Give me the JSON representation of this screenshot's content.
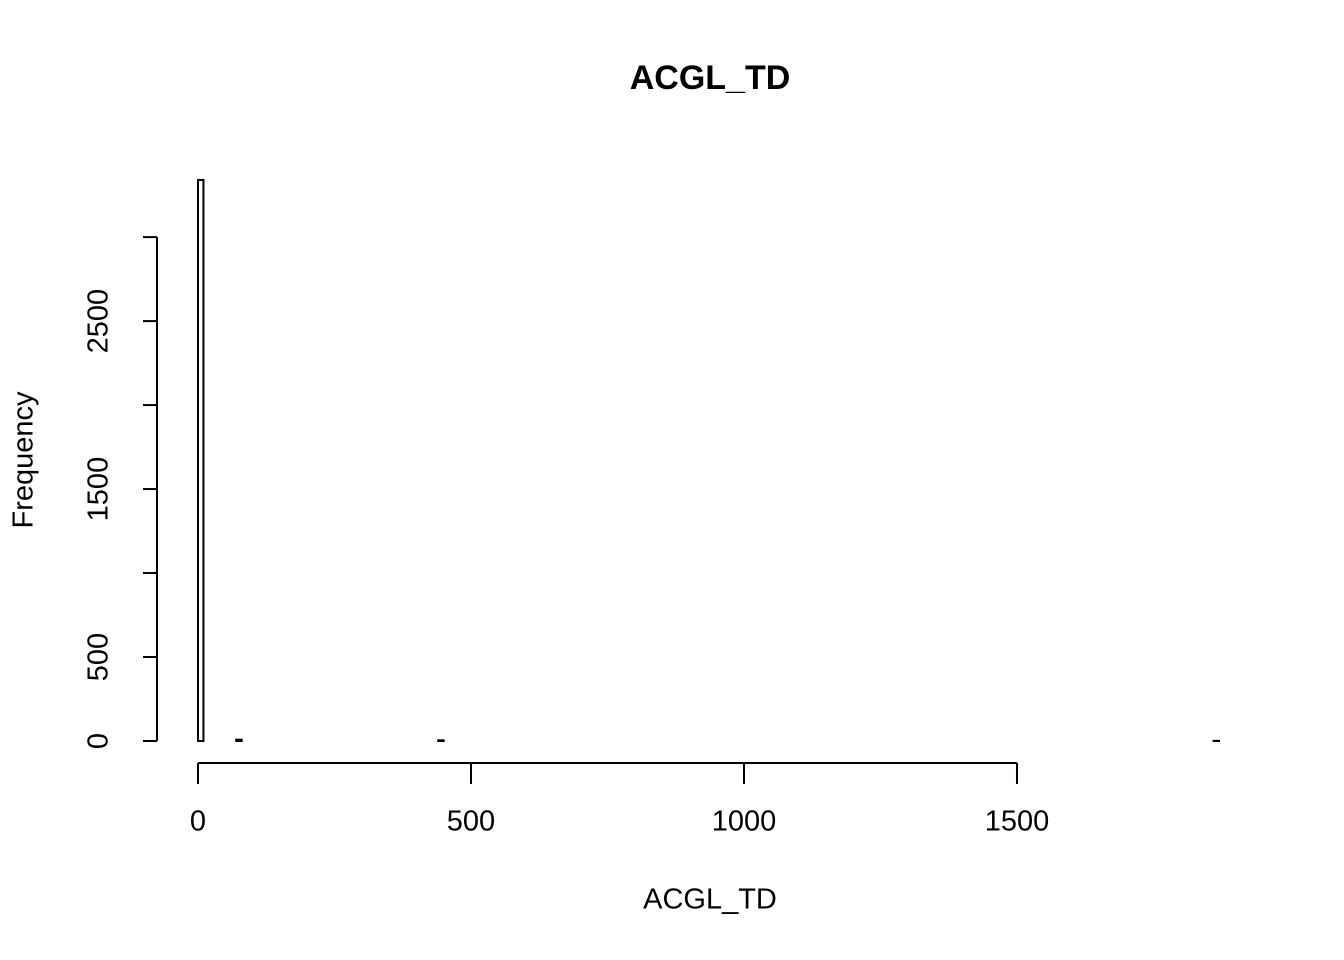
{
  "chart_data": {
    "type": "histogram",
    "title": "ACGL_TD",
    "x_label": "ACGL_TD",
    "y_label": "Frequency",
    "bins": [
      0,
      10,
      20,
      30,
      40,
      50,
      60,
      70,
      80,
      90,
      100,
      110,
      120,
      130,
      140,
      150,
      160,
      170,
      180,
      190,
      200,
      210,
      220,
      230,
      240,
      250,
      260,
      270,
      280,
      290,
      300,
      310,
      320,
      330,
      340,
      350,
      360,
      370,
      380,
      390,
      400,
      410,
      420,
      430,
      440,
      450,
      460,
      470,
      480,
      490,
      500,
      510,
      520,
      530,
      540,
      550,
      560,
      570,
      580,
      590,
      600,
      610,
      620,
      630,
      640,
      650,
      660,
      670,
      680,
      690,
      700,
      710,
      720,
      730,
      740,
      750,
      760,
      770,
      780,
      790,
      800,
      810,
      820,
      830,
      840,
      850,
      860,
      870,
      880,
      890,
      900,
      910,
      920,
      930,
      940,
      950,
      960,
      970,
      980,
      990,
      1000,
      1010,
      1020,
      1030,
      1040,
      1050,
      1060,
      1070,
      1080,
      1090,
      1100,
      1110,
      1120,
      1130,
      1140,
      1150,
      1160,
      1170,
      1180,
      1190,
      1200,
      1210,
      1220,
      1230,
      1240,
      1250,
      1260,
      1270,
      1280,
      1290,
      1300,
      1310,
      1320,
      1330,
      1340,
      1350,
      1360,
      1370,
      1380,
      1390,
      1400,
      1410,
      1420,
      1430,
      1440,
      1450,
      1460,
      1470,
      1480,
      1490,
      1500,
      1510,
      1520,
      1530,
      1540,
      1550,
      1560,
      1570,
      1580,
      1590,
      1600,
      1610,
      1620,
      1630,
      1640,
      1650,
      1660,
      1670,
      1680,
      1690,
      1700,
      1710,
      1720,
      1730,
      1740,
      1750,
      1760,
      1770,
      1780,
      1790,
      1800,
      1810,
      1820,
      1830,
      1840,
      1850,
      1860,
      1870
    ],
    "values": [
      3340,
      0,
      0,
      0,
      0,
      0,
      0,
      8,
      0,
      0,
      0,
      0,
      0,
      0,
      0,
      0,
      0,
      0,
      0,
      0,
      0,
      0,
      0,
      0,
      0,
      0,
      0,
      0,
      0,
      0,
      0,
      0,
      0,
      0,
      0,
      0,
      0,
      0,
      0,
      0,
      0,
      0,
      0,
      0,
      4,
      0,
      0,
      0,
      0,
      0,
      0,
      0,
      0,
      0,
      0,
      0,
      0,
      0,
      0,
      0,
      0,
      0,
      0,
      0,
      0,
      0,
      0,
      0,
      0,
      0,
      0,
      0,
      0,
      0,
      0,
      0,
      0,
      0,
      0,
      0,
      0,
      0,
      0,
      0,
      0,
      0,
      0,
      0,
      0,
      0,
      0,
      0,
      0,
      0,
      0,
      0,
      0,
      0,
      0,
      0,
      0,
      0,
      0,
      0,
      0,
      0,
      0,
      0,
      0,
      0,
      0,
      0,
      0,
      0,
      0,
      0,
      0,
      0,
      0,
      0,
      0,
      0,
      0,
      0,
      0,
      0,
      0,
      0,
      0,
      0,
      0,
      0,
      0,
      0,
      0,
      0,
      0,
      0,
      0,
      0,
      0,
      0,
      0,
      0,
      0,
      0,
      0,
      0,
      0,
      0,
      0,
      0,
      0,
      0,
      0,
      0,
      0,
      0,
      0,
      0,
      0,
      0,
      0,
      0,
      0,
      0,
      0,
      0,
      0,
      0,
      0,
      0,
      0,
      0,
      0,
      0,
      0,
      0,
      0,
      0,
      0,
      0,
      0,
      0,
      0,
      0,
      1
    ],
    "color": "#ffffff",
    "edge_color": "#000000",
    "xlim": [
      0,
      1870
    ],
    "xticks": [
      0,
      500,
      1000,
      1500
    ],
    "ylim": [
      0,
      3340
    ],
    "yticks": [
      0,
      500,
      {
        "value": 1000,
        "label": null
      },
      1500,
      {
        "value": 2000,
        "label": null
      },
      2500,
      {
        "value": 3000,
        "label": null
      }
    ]
  }
}
